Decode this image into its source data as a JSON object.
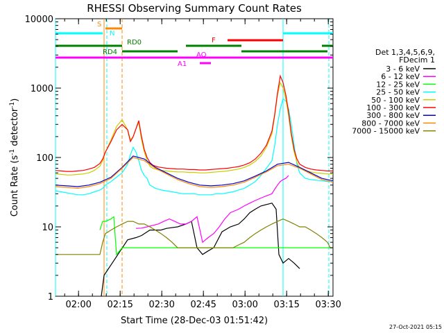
{
  "chart_data": {
    "type": "line",
    "title": "RHESSI Observing Summary Count Rates",
    "xlabel": "Start Time (28-Dec-03 01:51:42)",
    "ylabel": "Count Rate (s⁻¹ detector⁻¹)",
    "ylabel_parts": [
      "Count Rate (s",
      "-1",
      " detector",
      "-1",
      ")"
    ],
    "x_unit": "minutes after 01:51:42",
    "xlim": [
      0,
      100
    ],
    "ylim": [
      1,
      10000
    ],
    "yscale": "log",
    "x_ticks": [
      {
        "label": "02:00",
        "value": 8.3
      },
      {
        "label": "02:15",
        "value": 23.3
      },
      {
        "label": "02:30",
        "value": 38.3
      },
      {
        "label": "02:45",
        "value": 53.3
      },
      {
        "label": "03:00",
        "value": 68.3
      },
      {
        "label": "03:15",
        "value": 83.3
      },
      {
        "label": "03:30",
        "value": 98.3
      }
    ],
    "y_ticks": [
      {
        "label": "1",
        "value": 1
      },
      {
        "label": "10",
        "value": 10
      },
      {
        "label": "100",
        "value": 100
      },
      {
        "label": "1000",
        "value": 1000
      },
      {
        "label": "10000",
        "value": 10000
      }
    ],
    "legend": {
      "title": [
        "Det 1,3,4,5,6,9,",
        "FDecim 1"
      ],
      "position": "right"
    },
    "series": [
      {
        "name": "3 - 6 keV",
        "color": "#000000",
        "x": [
          16.5,
          17.5,
          26,
          29,
          31,
          34,
          36,
          38,
          40,
          44,
          47,
          49,
          51,
          53,
          55,
          57,
          60,
          63,
          66,
          68,
          70,
          72,
          74,
          76,
          78,
          79.5,
          80.5,
          82,
          84,
          86,
          88
        ],
        "y": [
          1,
          2,
          6.5,
          7,
          7.5,
          9,
          9,
          9,
          9.5,
          10,
          11,
          12,
          5,
          4,
          4.5,
          5,
          8.5,
          10,
          11,
          13,
          16,
          18,
          20,
          21,
          22,
          18,
          4,
          3,
          3.5,
          3,
          2.5
        ]
      },
      {
        "name": "6 - 12 keV",
        "color": "#ff00ff",
        "x": [
          29,
          31,
          33,
          35,
          37,
          39,
          41,
          43,
          45,
          47,
          49,
          51,
          53,
          55,
          57,
          59,
          61,
          63,
          66,
          68,
          70,
          72,
          74,
          76,
          78,
          79,
          80,
          81,
          82,
          83,
          84
        ],
        "y": [
          9.5,
          9.6,
          10,
          10.5,
          11,
          12,
          13,
          12,
          11,
          11,
          12,
          14,
          6,
          7,
          8,
          10,
          13,
          16,
          18,
          20,
          22,
          24,
          26,
          28,
          30,
          35,
          40,
          45,
          48,
          50,
          55
        ]
      },
      {
        "name": "12 - 25 keV",
        "color": "#00ff00",
        "x": [
          16,
          17,
          18,
          20,
          21,
          22,
          24,
          26,
          28,
          30,
          32,
          34,
          36,
          38,
          40,
          42,
          44,
          46,
          48,
          50,
          52,
          54,
          56,
          58,
          60,
          62,
          64,
          66,
          68,
          70,
          72,
          74,
          76,
          78,
          80,
          82,
          84,
          86,
          87,
          88,
          90,
          92,
          94,
          96,
          98,
          99,
          100
        ],
        "y": [
          9,
          12,
          12,
          13,
          14,
          4,
          5,
          5,
          5,
          5,
          5,
          5,
          5,
          5,
          5,
          5,
          5,
          5,
          5,
          5,
          5,
          5,
          5,
          5,
          5,
          5,
          5,
          5,
          5,
          5,
          5,
          5,
          5,
          5,
          5,
          5,
          5,
          5,
          5,
          5,
          5,
          5,
          5,
          5,
          5,
          5,
          5
        ]
      },
      {
        "name": "25 - 50 keV",
        "color": "#00ffff",
        "x": [
          0,
          2,
          4,
          6,
          8,
          10,
          12,
          14,
          16,
          17,
          18,
          20,
          22,
          24,
          26,
          27,
          28,
          29,
          30,
          31,
          32,
          33,
          34,
          35,
          36,
          37,
          38,
          40,
          42,
          44,
          46,
          48,
          50,
          52,
          54,
          56,
          58,
          60,
          62,
          64,
          66,
          68,
          70,
          72,
          74,
          76,
          78,
          79,
          80,
          81,
          82,
          83,
          84,
          85,
          86,
          87,
          88,
          90,
          92,
          94,
          96,
          98,
          99,
          100
        ],
        "y": [
          33,
          32,
          31,
          30,
          29,
          29,
          30,
          32,
          34,
          36,
          40,
          45,
          52,
          60,
          80,
          110,
          140,
          120,
          90,
          65,
          55,
          50,
          40,
          38,
          36,
          35,
          34,
          33,
          32,
          31,
          30,
          30,
          30,
          29,
          29,
          29,
          30,
          30,
          31,
          32,
          34,
          36,
          40,
          45,
          55,
          70,
          90,
          150,
          300,
          500,
          700,
          650,
          500,
          300,
          150,
          80,
          60,
          50,
          48,
          47,
          46,
          45,
          45,
          45
        ]
      },
      {
        "name": "50 - 100 keV",
        "color": "#cccc00",
        "x": [
          0,
          2,
          4,
          6,
          8,
          10,
          12,
          14,
          16,
          17,
          18,
          20,
          22,
          24,
          26,
          27,
          28,
          29,
          30,
          31,
          32,
          33,
          34,
          35,
          36,
          37,
          38,
          40,
          42,
          44,
          46,
          48,
          50,
          52,
          54,
          56,
          58,
          60,
          62,
          64,
          66,
          68,
          70,
          72,
          74,
          76,
          78,
          79,
          80,
          81,
          82,
          83,
          84,
          85,
          86,
          87,
          88,
          90,
          92,
          94,
          96,
          98,
          99,
          100
        ],
        "y": [
          58,
          57,
          56,
          56,
          57,
          58,
          60,
          65,
          75,
          90,
          120,
          180,
          280,
          350,
          250,
          180,
          200,
          260,
          320,
          180,
          120,
          90,
          75,
          70,
          68,
          66,
          65,
          64,
          63,
          62,
          62,
          61,
          61,
          60,
          60,
          61,
          62,
          63,
          64,
          66,
          68,
          72,
          78,
          88,
          105,
          140,
          220,
          400,
          800,
          1200,
          1000,
          700,
          400,
          200,
          120,
          85,
          70,
          65,
          62,
          60,
          59,
          58,
          58,
          58
        ]
      },
      {
        "name": "100 - 300 keV",
        "color": "#ff0000",
        "x": [
          0,
          2,
          4,
          6,
          8,
          10,
          12,
          14,
          16,
          17,
          18,
          20,
          22,
          24,
          26,
          27,
          28,
          29,
          30,
          31,
          32,
          33,
          34,
          35,
          36,
          37,
          38,
          40,
          42,
          44,
          46,
          48,
          50,
          52,
          54,
          56,
          58,
          60,
          62,
          64,
          66,
          68,
          70,
          72,
          74,
          76,
          78,
          79,
          80,
          81,
          82,
          83,
          84,
          85,
          86,
          87,
          88,
          90,
          92,
          94,
          96,
          98,
          99,
          100
        ],
        "y": [
          65,
          64,
          63,
          63,
          64,
          65,
          68,
          72,
          82,
          95,
          120,
          170,
          250,
          300,
          250,
          170,
          200,
          260,
          340,
          200,
          130,
          100,
          85,
          78,
          75,
          73,
          72,
          70,
          69,
          68,
          68,
          67,
          67,
          66,
          66,
          67,
          68,
          69,
          70,
          72,
          74,
          78,
          84,
          95,
          115,
          150,
          240,
          420,
          850,
          1500,
          1200,
          800,
          450,
          220,
          130,
          95,
          80,
          72,
          68,
          66,
          65,
          64,
          64,
          64
        ]
      },
      {
        "name": "300 - 800 keV",
        "color": "#0000cc",
        "x": [
          0,
          4,
          8,
          12,
          16,
          20,
          24,
          28,
          32,
          36,
          40,
          44,
          48,
          52,
          56,
          60,
          64,
          68,
          72,
          76,
          80,
          84,
          88,
          92,
          96,
          100
        ],
        "y": [
          40,
          39,
          38,
          40,
          44,
          52,
          72,
          105,
          95,
          72,
          60,
          50,
          44,
          40,
          39,
          40,
          42,
          46,
          54,
          64,
          80,
          85,
          72,
          60,
          50,
          46
        ]
      },
      {
        "name": "800 - 7000 keV",
        "color": "#ff8800",
        "x": [
          0,
          4,
          8,
          12,
          16,
          20,
          24,
          28,
          32,
          36,
          40,
          44,
          48,
          52,
          56,
          60,
          64,
          68,
          72,
          76,
          80,
          84,
          88,
          92,
          96,
          100
        ],
        "y": [
          38,
          37,
          36,
          38,
          42,
          50,
          70,
          100,
          90,
          70,
          58,
          48,
          42,
          38,
          37,
          38,
          40,
          44,
          52,
          62,
          76,
          80,
          70,
          58,
          48,
          44
        ]
      },
      {
        "name": "7000 - 15000 keV",
        "color": "#808000",
        "x": [
          0,
          2,
          4,
          6,
          8,
          10,
          12,
          14,
          16,
          17,
          18,
          20,
          22,
          24,
          26,
          28,
          30,
          32,
          34,
          36,
          38,
          40,
          42,
          44,
          46,
          48,
          50,
          52,
          54,
          56,
          58,
          60,
          62,
          64,
          66,
          68,
          70,
          72,
          74,
          76,
          78,
          80,
          82,
          84,
          86,
          88,
          90,
          92,
          94,
          96,
          98,
          99,
          100
        ],
        "y": [
          4,
          4,
          4,
          4,
          4,
          4,
          4,
          4,
          4,
          6,
          8,
          9,
          10,
          11,
          12,
          12,
          11,
          11,
          10,
          9,
          8,
          7,
          6,
          5,
          5,
          5,
          5,
          5,
          5,
          5,
          5,
          5,
          5,
          5,
          5.5,
          6,
          7,
          8,
          9,
          10,
          11,
          12,
          13,
          12,
          11,
          10,
          10,
          9,
          8,
          7,
          6,
          5,
          5
        ]
      }
    ],
    "flag_bars": [
      {
        "label": "S",
        "color": "#ff8800",
        "segments": [
          [
            18,
            24
          ]
        ]
      },
      {
        "label": "N",
        "color": "#00ffff",
        "segments": [
          [
            0,
            17
          ],
          [
            82,
            100
          ]
        ]
      },
      {
        "label": "F",
        "color": "#ff0000",
        "segments": [
          [
            62,
            82
          ]
        ]
      },
      {
        "label": "RD0",
        "color": "#008000",
        "segments": [
          [
            0,
            24
          ],
          [
            47,
            67
          ],
          [
            96,
            100
          ]
        ]
      },
      {
        "label": "RD4",
        "color": "#008000",
        "segments": [
          [
            24,
            44
          ],
          [
            67,
            98
          ]
        ]
      },
      {
        "label": "AQ",
        "color": "#ff00ff",
        "segments": [
          [
            0,
            100
          ]
        ]
      },
      {
        "label": "A1",
        "color": "#ff00ff",
        "segments": [
          [
            52,
            56
          ]
        ]
      }
    ],
    "vertical_markers": [
      {
        "x": 0,
        "color": "#00ffff",
        "style": "solid"
      },
      {
        "x": 17.5,
        "color": "#ff8800",
        "style": "solid"
      },
      {
        "x": 18.5,
        "color": "#00ffff",
        "style": "dashed"
      },
      {
        "x": 24,
        "color": "#ff8800",
        "style": "dashed"
      },
      {
        "x": 82,
        "color": "#00ffff",
        "style": "solid"
      },
      {
        "x": 98.5,
        "color": "#00ffff",
        "style": "dashed"
      }
    ]
  },
  "footer": {
    "timestamp": "27-Oct-2021 05:15"
  }
}
